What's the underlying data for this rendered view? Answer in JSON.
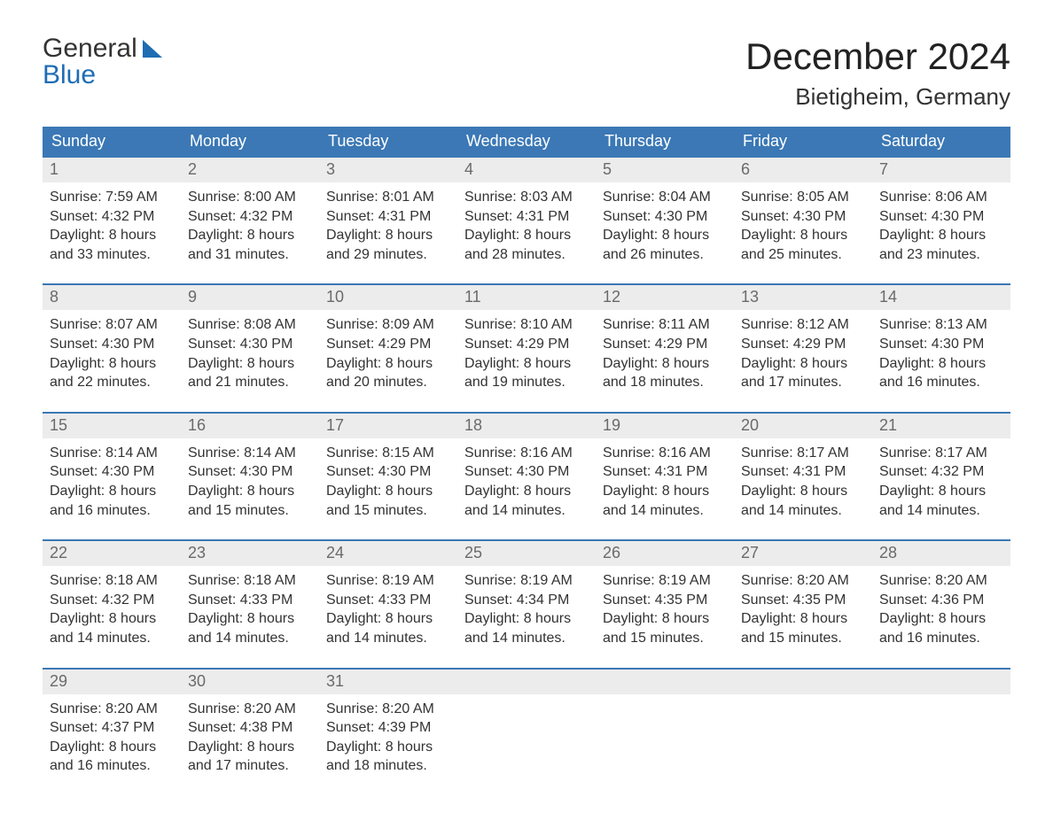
{
  "logo": {
    "line1": "General",
    "line2": "Blue"
  },
  "title": "December 2024",
  "location": "Bietigheim, Germany",
  "colors": {
    "header_bg": "#3b78b5",
    "header_text": "#ffffff",
    "daynum_bg": "#ececec",
    "daynum_text": "#6a6a6a",
    "body_text": "#333333",
    "week_border": "#3b78b5",
    "page_bg": "#ffffff",
    "logo_blue": "#1f6db3"
  },
  "typography": {
    "title_fontsize": 42,
    "location_fontsize": 26,
    "weekday_fontsize": 18,
    "daynum_fontsize": 18,
    "body_fontsize": 16
  },
  "weekdays": [
    "Sunday",
    "Monday",
    "Tuesday",
    "Wednesday",
    "Thursday",
    "Friday",
    "Saturday"
  ],
  "labels": {
    "sunrise": "Sunrise:",
    "sunset": "Sunset:",
    "daylight_prefix": "Daylight:"
  },
  "days": [
    {
      "n": 1,
      "sunrise": "7:59 AM",
      "sunset": "4:32 PM",
      "daylight": "8 hours and 33 minutes."
    },
    {
      "n": 2,
      "sunrise": "8:00 AM",
      "sunset": "4:32 PM",
      "daylight": "8 hours and 31 minutes."
    },
    {
      "n": 3,
      "sunrise": "8:01 AM",
      "sunset": "4:31 PM",
      "daylight": "8 hours and 29 minutes."
    },
    {
      "n": 4,
      "sunrise": "8:03 AM",
      "sunset": "4:31 PM",
      "daylight": "8 hours and 28 minutes."
    },
    {
      "n": 5,
      "sunrise": "8:04 AM",
      "sunset": "4:30 PM",
      "daylight": "8 hours and 26 minutes."
    },
    {
      "n": 6,
      "sunrise": "8:05 AM",
      "sunset": "4:30 PM",
      "daylight": "8 hours and 25 minutes."
    },
    {
      "n": 7,
      "sunrise": "8:06 AM",
      "sunset": "4:30 PM",
      "daylight": "8 hours and 23 minutes."
    },
    {
      "n": 8,
      "sunrise": "8:07 AM",
      "sunset": "4:30 PM",
      "daylight": "8 hours and 22 minutes."
    },
    {
      "n": 9,
      "sunrise": "8:08 AM",
      "sunset": "4:30 PM",
      "daylight": "8 hours and 21 minutes."
    },
    {
      "n": 10,
      "sunrise": "8:09 AM",
      "sunset": "4:29 PM",
      "daylight": "8 hours and 20 minutes."
    },
    {
      "n": 11,
      "sunrise": "8:10 AM",
      "sunset": "4:29 PM",
      "daylight": "8 hours and 19 minutes."
    },
    {
      "n": 12,
      "sunrise": "8:11 AM",
      "sunset": "4:29 PM",
      "daylight": "8 hours and 18 minutes."
    },
    {
      "n": 13,
      "sunrise": "8:12 AM",
      "sunset": "4:29 PM",
      "daylight": "8 hours and 17 minutes."
    },
    {
      "n": 14,
      "sunrise": "8:13 AM",
      "sunset": "4:30 PM",
      "daylight": "8 hours and 16 minutes."
    },
    {
      "n": 15,
      "sunrise": "8:14 AM",
      "sunset": "4:30 PM",
      "daylight": "8 hours and 16 minutes."
    },
    {
      "n": 16,
      "sunrise": "8:14 AM",
      "sunset": "4:30 PM",
      "daylight": "8 hours and 15 minutes."
    },
    {
      "n": 17,
      "sunrise": "8:15 AM",
      "sunset": "4:30 PM",
      "daylight": "8 hours and 15 minutes."
    },
    {
      "n": 18,
      "sunrise": "8:16 AM",
      "sunset": "4:30 PM",
      "daylight": "8 hours and 14 minutes."
    },
    {
      "n": 19,
      "sunrise": "8:16 AM",
      "sunset": "4:31 PM",
      "daylight": "8 hours and 14 minutes."
    },
    {
      "n": 20,
      "sunrise": "8:17 AM",
      "sunset": "4:31 PM",
      "daylight": "8 hours and 14 minutes."
    },
    {
      "n": 21,
      "sunrise": "8:17 AM",
      "sunset": "4:32 PM",
      "daylight": "8 hours and 14 minutes."
    },
    {
      "n": 22,
      "sunrise": "8:18 AM",
      "sunset": "4:32 PM",
      "daylight": "8 hours and 14 minutes."
    },
    {
      "n": 23,
      "sunrise": "8:18 AM",
      "sunset": "4:33 PM",
      "daylight": "8 hours and 14 minutes."
    },
    {
      "n": 24,
      "sunrise": "8:19 AM",
      "sunset": "4:33 PM",
      "daylight": "8 hours and 14 minutes."
    },
    {
      "n": 25,
      "sunrise": "8:19 AM",
      "sunset": "4:34 PM",
      "daylight": "8 hours and 14 minutes."
    },
    {
      "n": 26,
      "sunrise": "8:19 AM",
      "sunset": "4:35 PM",
      "daylight": "8 hours and 15 minutes."
    },
    {
      "n": 27,
      "sunrise": "8:20 AM",
      "sunset": "4:35 PM",
      "daylight": "8 hours and 15 minutes."
    },
    {
      "n": 28,
      "sunrise": "8:20 AM",
      "sunset": "4:36 PM",
      "daylight": "8 hours and 16 minutes."
    },
    {
      "n": 29,
      "sunrise": "8:20 AM",
      "sunset": "4:37 PM",
      "daylight": "8 hours and 16 minutes."
    },
    {
      "n": 30,
      "sunrise": "8:20 AM",
      "sunset": "4:38 PM",
      "daylight": "8 hours and 17 minutes."
    },
    {
      "n": 31,
      "sunrise": "8:20 AM",
      "sunset": "4:39 PM",
      "daylight": "8 hours and 18 minutes."
    }
  ],
  "first_weekday_index": 0,
  "columns": 7
}
